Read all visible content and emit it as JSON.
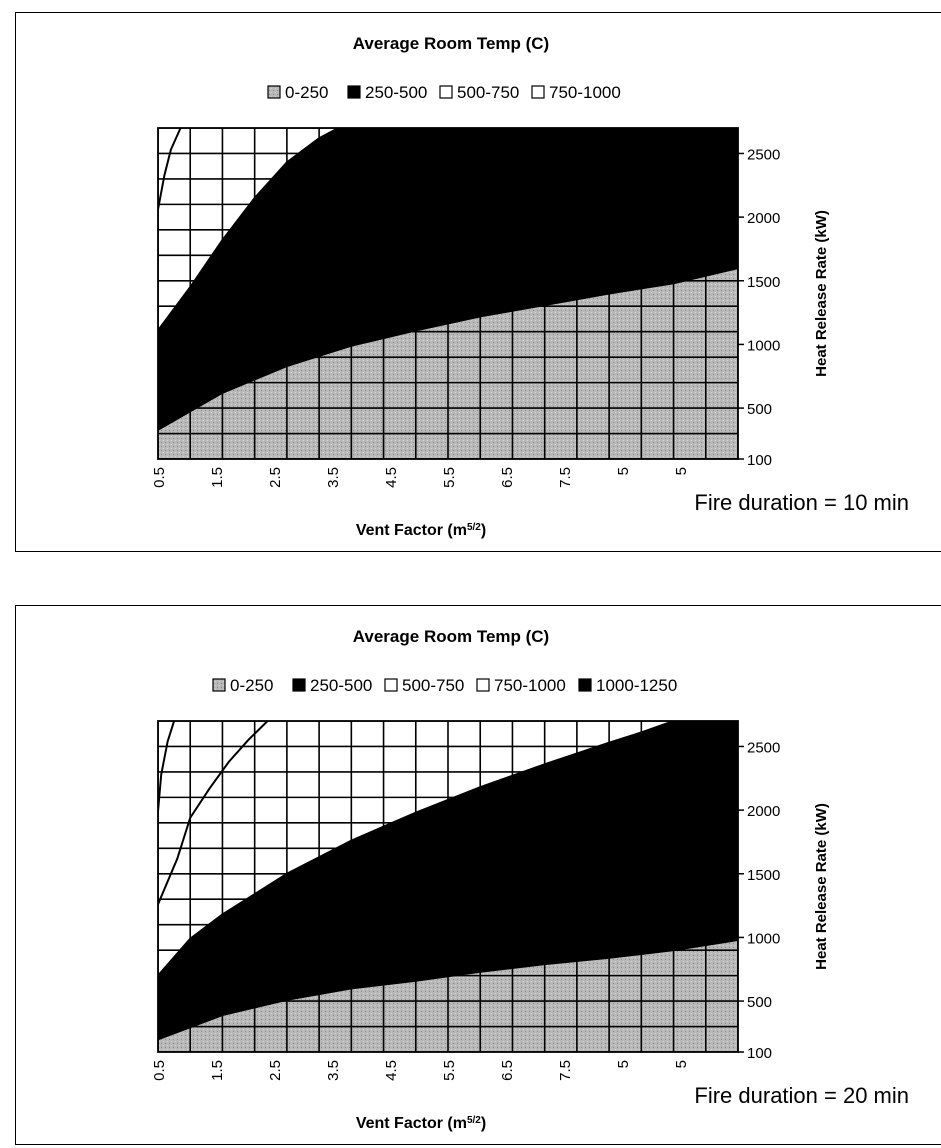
{
  "colors": {
    "band_0_250": "#b8b8b8",
    "band_250_500": "#000000",
    "band_500_750": "#ffffff",
    "band_750_1000": "#ffffff",
    "band_1000_1250": "#000000",
    "grid": "#000000",
    "frame": "#000000"
  },
  "chart_data": [
    {
      "type": "area",
      "title": "Average Room Temp (C)",
      "legend": [
        "0-250",
        "250-500",
        "500-750",
        "750-1000"
      ],
      "legend_position": "top",
      "xlabel": "Vent Factor (m5/2)",
      "ylabel": "Heat Release Rate (kW)",
      "x_ticks": [
        "0.5",
        "1.5",
        "2.5",
        "3.5",
        "4.5",
        "5.5",
        "6.5",
        "7.5",
        "5",
        "5"
      ],
      "y_ticks": [
        "100",
        "500",
        "1000",
        "1500",
        "2000",
        "2500"
      ],
      "xlim": [
        0.5,
        9.5
      ],
      "ylim": [
        100,
        2700
      ],
      "grid": true,
      "annotation": "Fire duration = 10 min",
      "boundaries": [
        {
          "between": [
            "0-250",
            "250-500"
          ],
          "x": [
            0.5,
            1.5,
            2.5,
            3.5,
            4.5,
            5.5,
            6.5,
            7.5,
            8.5,
            9.5
          ],
          "y": [
            330,
            620,
            830,
            990,
            1110,
            1220,
            1310,
            1400,
            1480,
            1600
          ]
        },
        {
          "between": [
            "250-500",
            "500-750"
          ],
          "x": [
            0.5,
            1.0,
            1.5,
            2.0,
            2.5,
            3.0,
            3.3
          ],
          "y": [
            1110,
            1450,
            1820,
            2150,
            2430,
            2620,
            2700
          ]
        },
        {
          "between": [
            "500-750",
            "750-1000"
          ],
          "x": [
            0.5,
            0.6,
            0.7,
            0.85
          ],
          "y": [
            2060,
            2330,
            2530,
            2700
          ]
        }
      ]
    },
    {
      "type": "area",
      "title": "Average Room Temp (C)",
      "legend": [
        "0-250",
        "250-500",
        "500-750",
        "750-1000",
        "1000-1250"
      ],
      "legend_position": "top",
      "xlabel": "Vent Factor (m5/2)",
      "ylabel": "Heat Release Rate (kW)",
      "x_ticks": [
        "0.5",
        "1.5",
        "2.5",
        "3.5",
        "4.5",
        "5.5",
        "6.5",
        "7.5",
        "5",
        "5"
      ],
      "y_ticks": [
        "100",
        "500",
        "1000",
        "1500",
        "2000",
        "2500"
      ],
      "xlim": [
        0.5,
        9.5
      ],
      "ylim": [
        100,
        2700
      ],
      "grid": true,
      "annotation": "Fire duration = 20 min",
      "boundaries": [
        {
          "between": [
            "0-250",
            "250-500"
          ],
          "x": [
            0.5,
            1.5,
            2.5,
            3.5,
            4.5,
            5.5,
            6.5,
            7.5,
            8.5,
            9.5
          ],
          "y": [
            200,
            390,
            510,
            600,
            660,
            730,
            790,
            840,
            900,
            980
          ]
        },
        {
          "between": [
            "250-500",
            "500-750"
          ],
          "x": [
            0.5,
            1.0,
            1.5,
            2.5,
            3.5,
            4.5,
            5.5,
            6.5,
            7.5,
            8.0,
            8.5,
            9.5
          ],
          "y": [
            700,
            990,
            1180,
            1500,
            1760,
            1980,
            2180,
            2360,
            2530,
            2610,
            2700,
            2700
          ]
        },
        {
          "between": [
            "500-750",
            "750-1000"
          ],
          "x": [
            0.5,
            0.8,
            1.0,
            1.3,
            1.6,
            1.9,
            2.1,
            2.2
          ],
          "y": [
            1260,
            1620,
            1940,
            2170,
            2380,
            2550,
            2650,
            2700
          ]
        },
        {
          "between": [
            "750-1000",
            "1000-1250"
          ],
          "x": [
            0.5,
            0.55,
            0.65,
            0.75
          ],
          "y": [
            1990,
            2280,
            2540,
            2700
          ]
        }
      ]
    }
  ]
}
